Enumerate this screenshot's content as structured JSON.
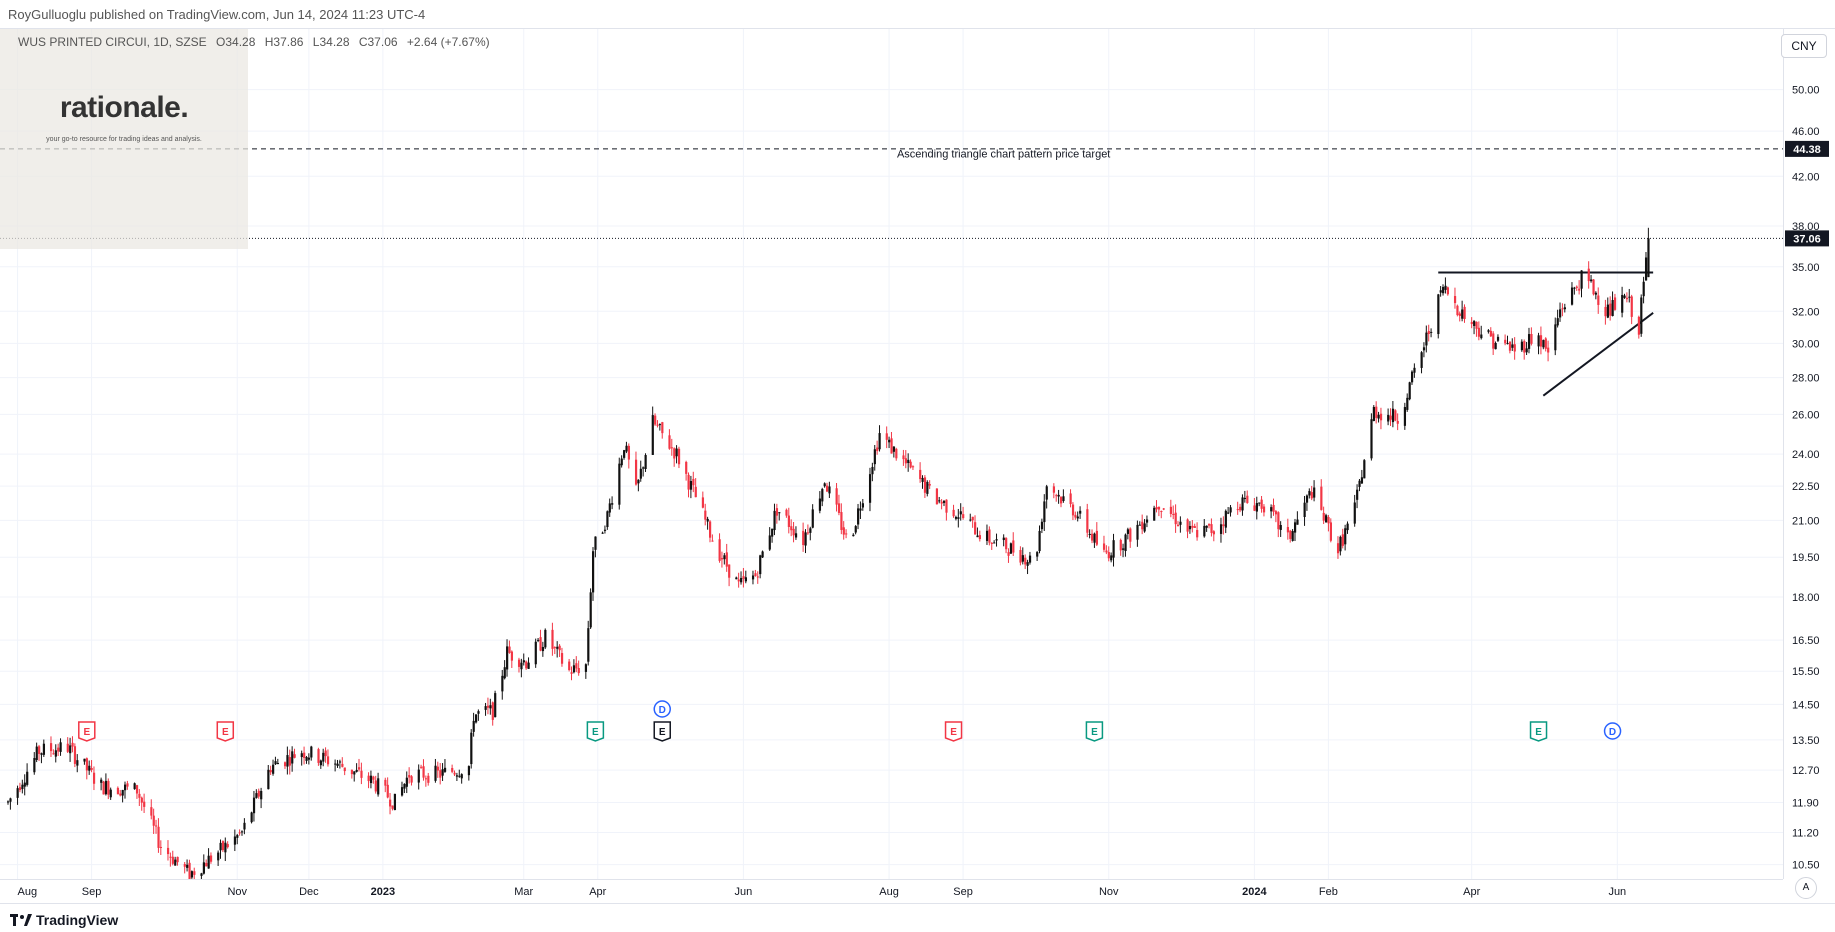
{
  "header": {
    "publisher_text": "RoyGulluoglu published on TradingView.com, Jun 14, 2024 11:23 UTC-4"
  },
  "legend": {
    "symbol": "WUS PRINTED CIRCUI, 1D, SZSE",
    "open": "O34.28",
    "high": "H37.86",
    "low": "L34.28",
    "close": "C37.06",
    "change": "+2.64 (+7.67%)"
  },
  "brand": {
    "name": "rationale.",
    "tagline": "your go-to resource for trading ideas and analysis."
  },
  "currency": "CNY",
  "auto_label": "A",
  "footer": {
    "logo_text": "TradingView"
  },
  "colors": {
    "up": "#089981",
    "down": "#f23645",
    "candle_up_fill": "#111111",
    "candle_down_fill": "#f23645",
    "grid": "#f0f3fa",
    "accent": "#2962ff"
  },
  "chart_data": {
    "type": "candlestick",
    "y_scale": "log",
    "ylim": [
      10.2,
      56.5
    ],
    "y_ticks": [
      10.5,
      11.2,
      11.9,
      12.7,
      13.5,
      14.5,
      15.5,
      16.5,
      18.0,
      19.5,
      21.0,
      22.5,
      24.0,
      26.0,
      28.0,
      30.0,
      32.0,
      35.0,
      38.0,
      42.0,
      46.0,
      50.0
    ],
    "y_tick_labels": [
      "10.50",
      "11.20",
      "11.90",
      "12.70",
      "13.50",
      "14.50",
      "15.50",
      "16.50",
      "18.00",
      "19.50",
      "21.00",
      "22.50",
      "24.00",
      "26.00",
      "28.00",
      "30.00",
      "32.00",
      "35.00",
      "38.00",
      "42.00",
      "46.00",
      "50.00"
    ],
    "x_range": [
      "2022-07-28",
      "2024-07-14"
    ],
    "x_ticks": [
      {
        "date": "2022-08-01",
        "label": "Aug"
      },
      {
        "date": "2022-09-01",
        "label": "Sep"
      },
      {
        "date": "2022-11-01",
        "label": "Nov"
      },
      {
        "date": "2022-12-01",
        "label": "Dec"
      },
      {
        "date": "2023-01-01",
        "label": "2023"
      },
      {
        "date": "2023-03-01",
        "label": "Mar"
      },
      {
        "date": "2023-04-01",
        "label": "Apr"
      },
      {
        "date": "2023-06-01",
        "label": "Jun"
      },
      {
        "date": "2023-08-01",
        "label": "Aug"
      },
      {
        "date": "2023-09-01",
        "label": "Sep"
      },
      {
        "date": "2023-11-01",
        "label": "Nov"
      },
      {
        "date": "2024-01-01",
        "label": "2024"
      },
      {
        "date": "2024-02-01",
        "label": "Feb"
      },
      {
        "date": "2024-04-01",
        "label": "Apr"
      },
      {
        "date": "2024-06-01",
        "label": "Jun"
      }
    ],
    "price_path": [
      [
        "2022-07-28",
        11.9
      ],
      [
        "2022-08-10",
        13.2
      ],
      [
        "2022-08-22",
        13.3
      ],
      [
        "2022-09-05",
        12.3
      ],
      [
        "2022-09-20",
        12.2
      ],
      [
        "2022-09-30",
        10.9
      ],
      [
        "2022-10-12",
        10.3
      ],
      [
        "2022-10-25",
        10.8
      ],
      [
        "2022-11-03",
        11.2
      ],
      [
        "2022-11-15",
        12.8
      ],
      [
        "2022-11-28",
        13.2
      ],
      [
        "2022-12-12",
        12.9
      ],
      [
        "2022-12-28",
        12.4
      ],
      [
        "2023-01-06",
        11.9
      ],
      [
        "2023-01-12",
        12.6
      ],
      [
        "2023-01-25",
        12.6
      ],
      [
        "2023-02-06",
        12.8
      ],
      [
        "2023-02-08",
        14.2
      ],
      [
        "2023-02-16",
        14.3
      ],
      [
        "2023-02-22",
        16.1
      ],
      [
        "2023-03-02",
        15.8
      ],
      [
        "2023-03-10",
        16.6
      ],
      [
        "2023-03-20",
        15.5
      ],
      [
        "2023-03-27",
        15.7
      ],
      [
        "2023-03-30",
        19.8
      ],
      [
        "2023-04-05",
        21.2
      ],
      [
        "2023-04-12",
        24.5
      ],
      [
        "2023-04-17",
        22.2
      ],
      [
        "2023-04-24",
        25.6
      ],
      [
        "2023-05-04",
        24.0
      ],
      [
        "2023-05-12",
        22.0
      ],
      [
        "2023-05-20",
        20.0
      ],
      [
        "2023-05-30",
        18.4
      ],
      [
        "2023-06-06",
        18.8
      ],
      [
        "2023-06-15",
        21.5
      ],
      [
        "2023-06-26",
        20.2
      ],
      [
        "2023-07-05",
        22.8
      ],
      [
        "2023-07-15",
        20.0
      ],
      [
        "2023-07-22",
        22.5
      ],
      [
        "2023-07-28",
        25.0
      ],
      [
        "2023-08-08",
        23.5
      ],
      [
        "2023-08-20",
        22.0
      ],
      [
        "2023-08-30",
        21.3
      ],
      [
        "2023-09-10",
        20.3
      ],
      [
        "2023-09-22",
        19.8
      ],
      [
        "2023-10-01",
        19.3
      ],
      [
        "2023-10-06",
        22.6
      ],
      [
        "2023-10-18",
        21.4
      ],
      [
        "2023-10-30",
        19.6
      ],
      [
        "2023-11-10",
        20.4
      ],
      [
        "2023-11-22",
        21.8
      ],
      [
        "2023-12-05",
        20.5
      ],
      [
        "2023-12-15",
        20.6
      ],
      [
        "2023-12-25",
        21.8
      ],
      [
        "2024-01-05",
        21.7
      ],
      [
        "2024-01-15",
        20.2
      ],
      [
        "2024-01-25",
        22.3
      ],
      [
        "2024-02-05",
        19.8
      ],
      [
        "2024-02-12",
        21.5
      ],
      [
        "2024-02-20",
        26.2
      ],
      [
        "2024-03-01",
        25.8
      ],
      [
        "2024-03-10",
        29.0
      ],
      [
        "2024-03-20",
        33.6
      ],
      [
        "2024-03-30",
        31.5
      ],
      [
        "2024-04-10",
        30.2
      ],
      [
        "2024-04-20",
        29.6
      ],
      [
        "2024-04-28",
        30.6
      ],
      [
        "2024-05-03",
        29.4
      ],
      [
        "2024-05-08",
        32.1
      ],
      [
        "2024-05-18",
        34.4
      ],
      [
        "2024-05-28",
        32.0
      ],
      [
        "2024-06-05",
        32.8
      ],
      [
        "2024-06-10",
        31.0
      ],
      [
        "2024-06-12",
        33.8
      ],
      [
        "2024-06-14",
        37.06
      ]
    ],
    "last_price": 37.06,
    "last_price_label": "37.06",
    "target_price": 44.38,
    "target_price_label": "44.38",
    "annotations": [
      {
        "text": "Ascending triangle chart pattern price target",
        "date": "2023-09-18",
        "price": 43.6
      }
    ],
    "trendlines": [
      {
        "name": "resistance",
        "from": {
          "date": "2024-03-18",
          "price": 34.6
        },
        "to": {
          "date": "2024-06-16",
          "price": 34.6
        }
      },
      {
        "name": "support",
        "from": {
          "date": "2024-05-01",
          "price": 27.0
        },
        "to": {
          "date": "2024-06-16",
          "price": 31.9
        }
      }
    ],
    "events": [
      {
        "date": "2022-08-30",
        "label": "E",
        "color": "#f23645"
      },
      {
        "date": "2022-10-27",
        "label": "E",
        "color": "#f23645"
      },
      {
        "date": "2023-03-31",
        "label": "E",
        "color": "#089981"
      },
      {
        "date": "2023-04-28",
        "label": "E",
        "color": "#131722"
      },
      {
        "date": "2023-04-28",
        "label": "D",
        "color": "#2962ff",
        "row": "upper"
      },
      {
        "date": "2023-08-28",
        "label": "E",
        "color": "#f23645"
      },
      {
        "date": "2023-10-26",
        "label": "E",
        "color": "#089981"
      },
      {
        "date": "2024-04-29",
        "label": "E",
        "color": "#089981"
      },
      {
        "date": "2024-05-30",
        "label": "D",
        "color": "#2962ff"
      }
    ]
  }
}
